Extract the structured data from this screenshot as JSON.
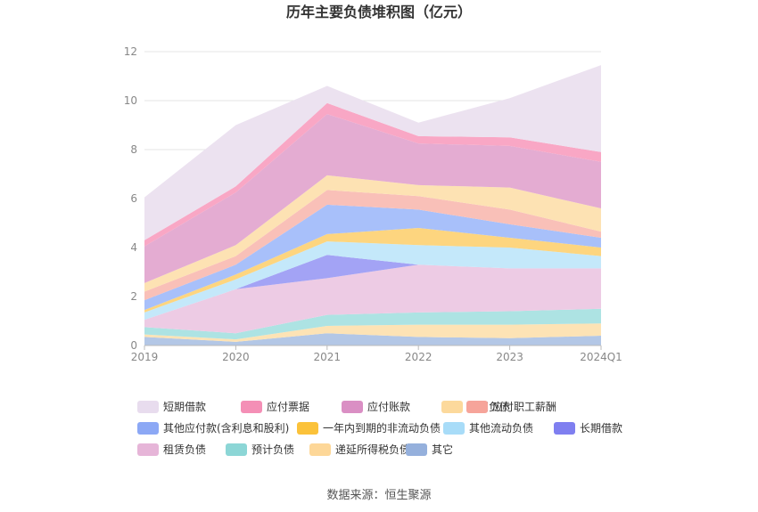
{
  "chart_data": {
    "type": "area",
    "stacked": true,
    "title": "历年主要负债堆积图（亿元）",
    "categories": [
      "2019",
      "2020",
      "2021",
      "2022",
      "2023",
      "2024Q1"
    ],
    "ylim": [
      0,
      12
    ],
    "yticks": [
      0,
      2,
      4,
      6,
      8,
      10,
      12
    ],
    "grid": true,
    "legend_position": "bottom",
    "series": [
      {
        "name": "其它",
        "color": "#b3c7e6",
        "values": [
          0.35,
          0.15,
          0.5,
          0.35,
          0.3,
          0.4
        ]
      },
      {
        "name": "递延所得税负债",
        "color": "#fde3b5",
        "values": [
          0.1,
          0.1,
          0.3,
          0.5,
          0.55,
          0.5
        ]
      },
      {
        "name": "预计负债",
        "color": "#ade3e3",
        "values": [
          0.3,
          0.25,
          0.45,
          0.5,
          0.55,
          0.6
        ]
      },
      {
        "name": "租赁负债",
        "color": "#edcbe4",
        "values": [
          0.3,
          1.8,
          1.5,
          1.95,
          1.75,
          1.65
        ]
      },
      {
        "name": "长期借款",
        "color": "#a3a3f5",
        "values": [
          0.0,
          0.0,
          0.95,
          0.0,
          0.0,
          0.0
        ]
      },
      {
        "name": "其他流动负债",
        "color": "#c4e8fa",
        "values": [
          0.3,
          0.4,
          0.55,
          0.8,
          0.85,
          0.5
        ]
      },
      {
        "name": "一年内到期的非流动负债",
        "color": "#fdd57f",
        "values": [
          0.1,
          0.2,
          0.3,
          0.7,
          0.4,
          0.35
        ]
      },
      {
        "name": "其他应付款(含利息和股利)",
        "color": "#a8c0fa",
        "values": [
          0.4,
          0.4,
          1.2,
          0.75,
          0.55,
          0.4
        ]
      },
      {
        "name": "应付职工薪酬",
        "color": "#f9c0b8",
        "values": [
          0.35,
          0.35,
          0.6,
          0.55,
          0.6,
          0.25
        ]
      },
      {
        "name": "合同负债",
        "color": "#fde2b3",
        "values": [
          0.35,
          0.45,
          0.6,
          0.45,
          0.9,
          0.95
        ]
      },
      {
        "name": "应付账款",
        "color": "#e4acd2",
        "values": [
          1.5,
          2.15,
          2.5,
          1.7,
          1.7,
          1.9
        ]
      },
      {
        "name": "应付票据",
        "color": "#f9a7c5",
        "values": [
          0.25,
          0.25,
          0.45,
          0.3,
          0.35,
          0.4
        ]
      },
      {
        "name": "短期借款",
        "color": "#ece2f0",
        "values": [
          1.75,
          2.5,
          0.7,
          0.55,
          1.6,
          3.55
        ]
      }
    ],
    "legend_order": [
      "短期借款",
      "应付票据",
      "应付账款",
      "合同负债",
      "应付职工薪酬",
      "其他应付款(含利息和股利)",
      "一年内到期的非流动负债",
      "其他流动负债",
      "长期借款",
      "租赁负债",
      "预计负债",
      "递延所得税负债",
      "其它"
    ],
    "legend_colors": {
      "短期借款": "#e8dcee",
      "应付票据": "#f48fb6",
      "应付账款": "#da8fc4",
      "合同负债": "#fcd99c",
      "应付职工薪酬": "#f6a49a",
      "其他应付款(含利息和股利)": "#8ca8f5",
      "一年内到期的非流动负债": "#fbc23a",
      "其他流动负债": "#a8dcf8",
      "长期借款": "#7f7ff0",
      "租赁负债": "#e6b5d8",
      "预计负债": "#8cd6d6",
      "递延所得税负债": "#fdd798",
      "其它": "#95b0dc"
    },
    "source": "数据来源：恒生聚源"
  }
}
